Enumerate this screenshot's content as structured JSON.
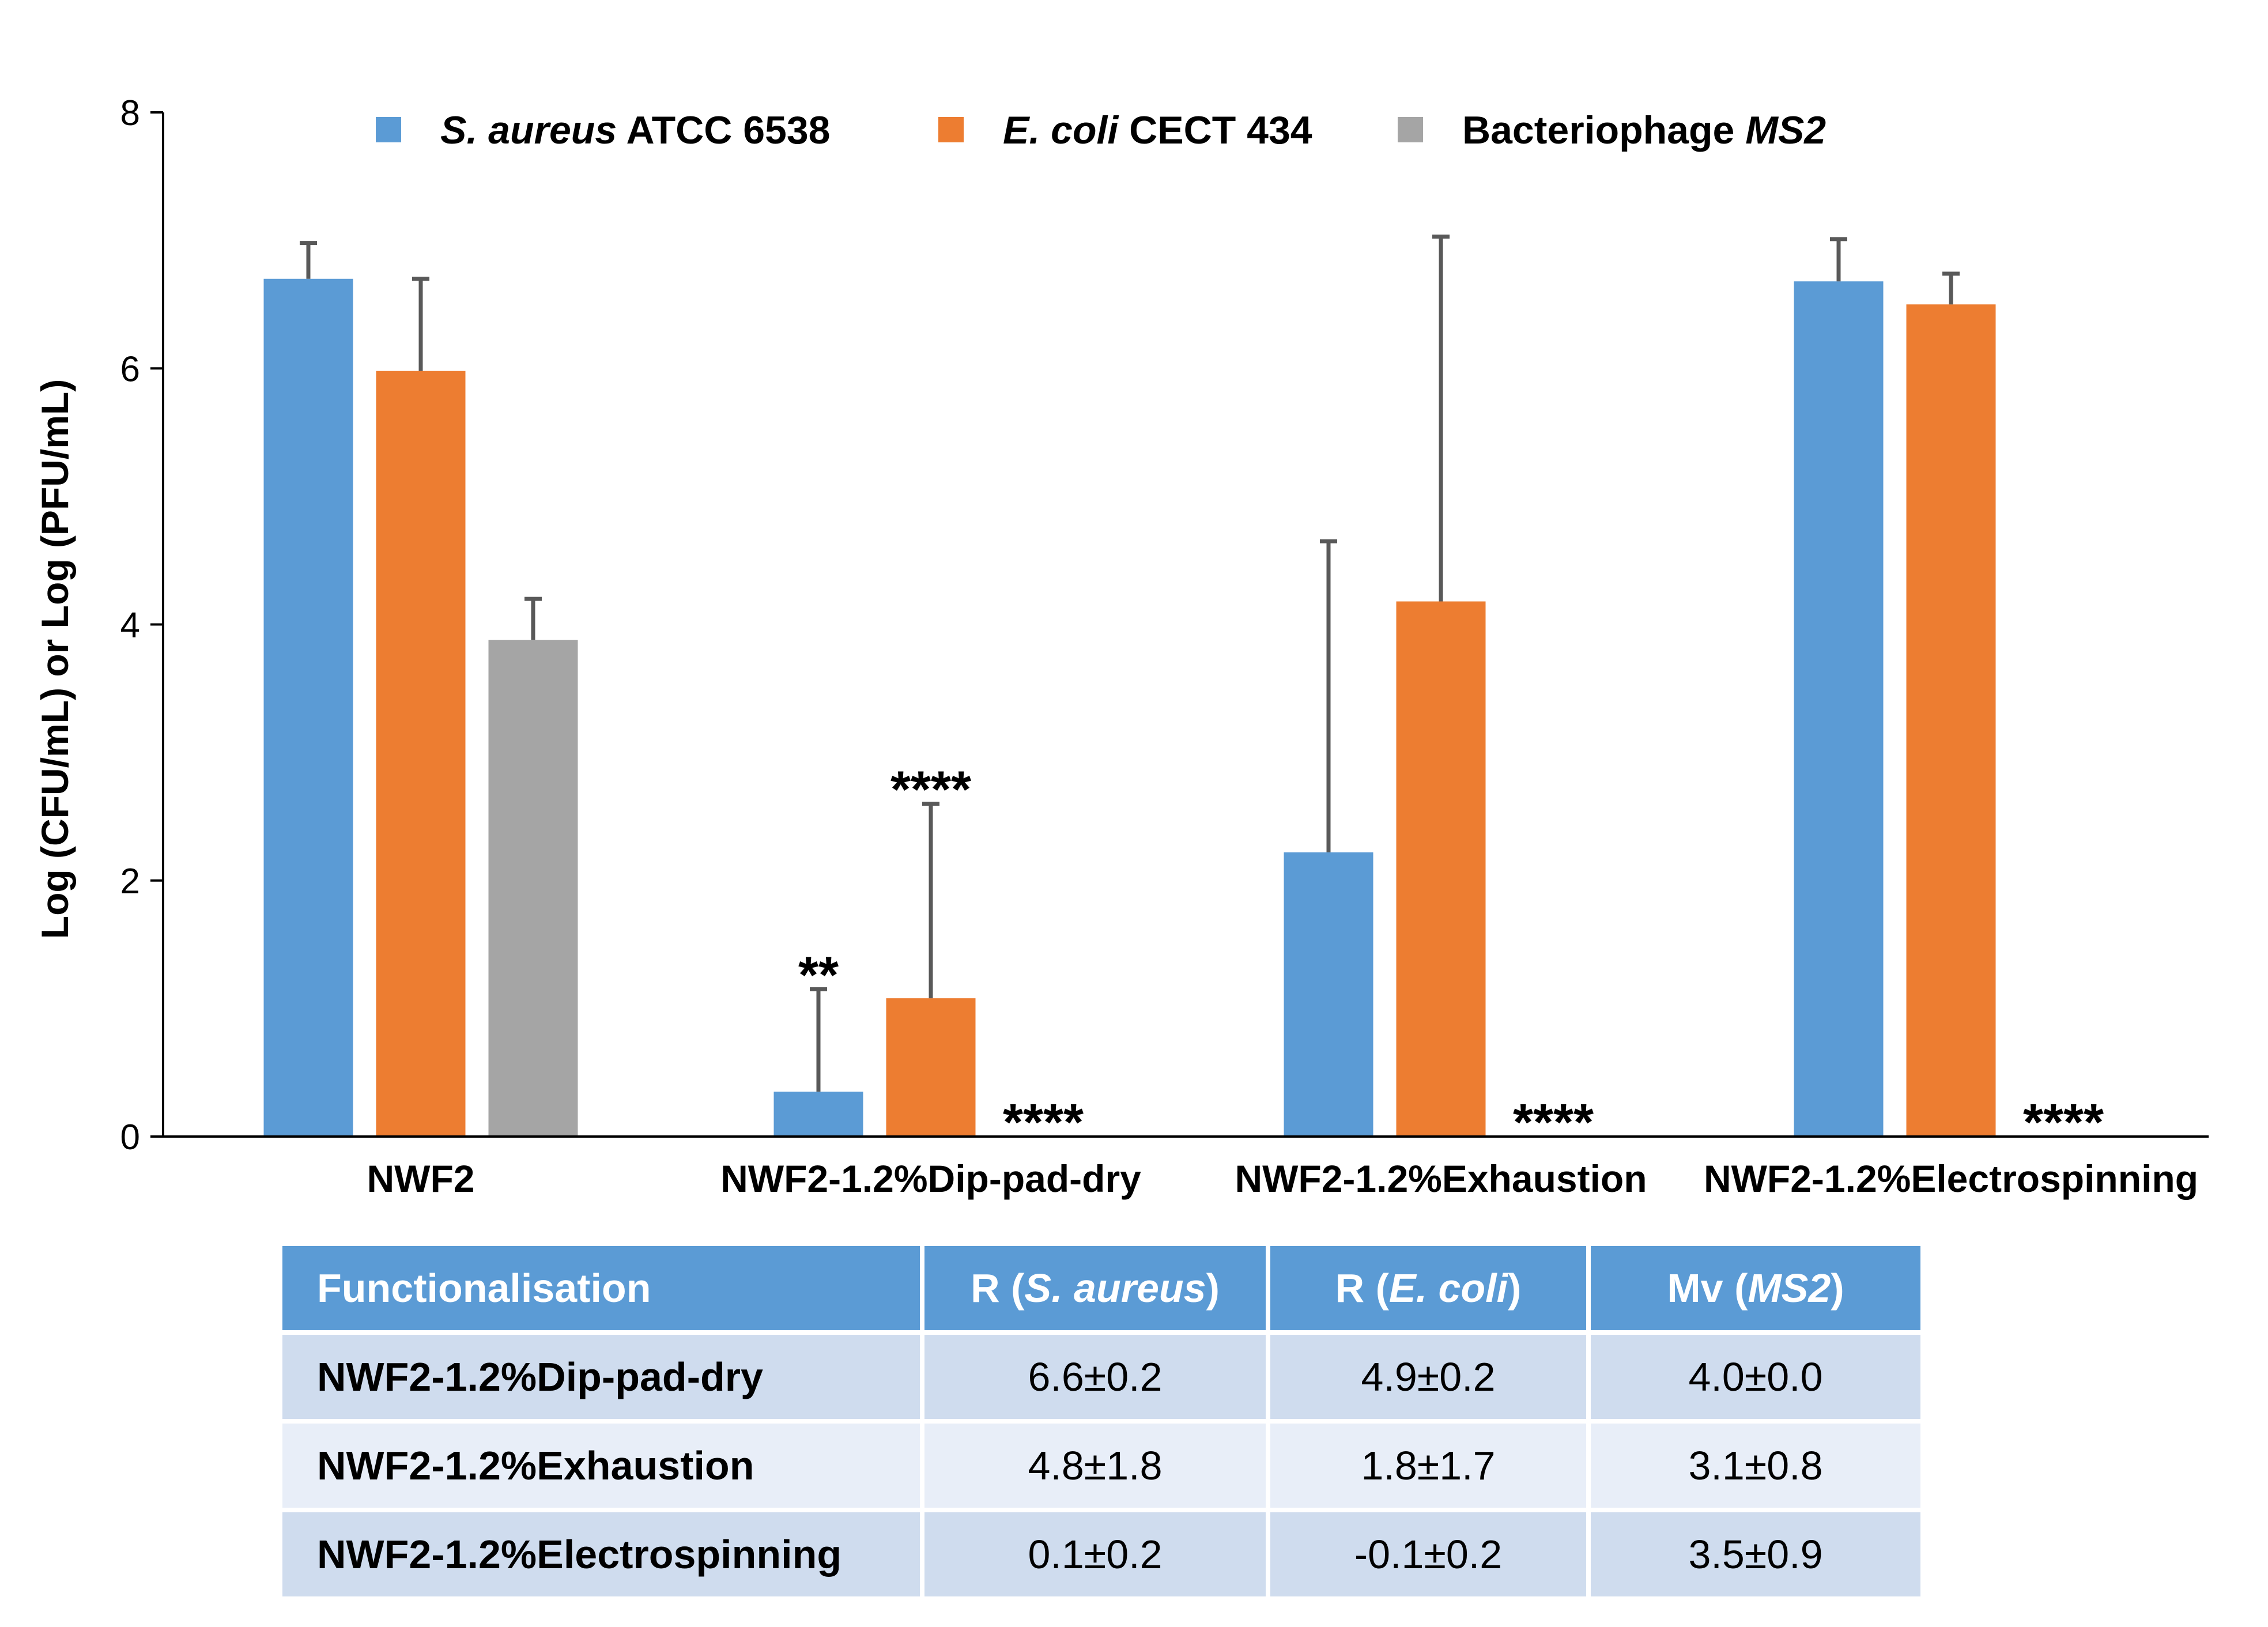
{
  "chart_data": {
    "type": "bar",
    "ylabel": "Log (CFU/mL) or Log (PFU/mL)",
    "ylim": [
      0,
      8
    ],
    "yticks": [
      0,
      2,
      4,
      6,
      8
    ],
    "legend_position": "top",
    "categories": [
      "NWF2",
      "NWF2-1.2%Dip-pad-dry",
      "NWF2-1.2%Exhaustion",
      "NWF2-1.2%Electrospinning"
    ],
    "series": [
      {
        "name_parts": [
          {
            "text": "S. aureus",
            "italic": true
          },
          {
            "text": " ATCC 6538",
            "italic": false
          }
        ],
        "color": "#5b9bd5",
        "values": [
          6.7,
          0.35,
          2.22,
          6.68
        ],
        "errors": [
          0.28,
          0.8,
          2.43,
          0.33
        ],
        "annotations": [
          "",
          "**",
          "",
          ""
        ]
      },
      {
        "name_parts": [
          {
            "text": "E. coli",
            "italic": true
          },
          {
            "text": " CECT 434",
            "italic": false
          }
        ],
        "color": "#ed7d31",
        "values": [
          5.98,
          1.08,
          4.18,
          6.5
        ],
        "errors": [
          0.72,
          1.52,
          2.85,
          0.24
        ],
        "annotations": [
          "",
          "****",
          "",
          ""
        ]
      },
      {
        "name_parts": [
          {
            "text": "Bacteriophage ",
            "italic": false
          },
          {
            "text": "MS2",
            "italic": true
          }
        ],
        "color": "#a5a5a5",
        "values": [
          3.88,
          0,
          0,
          0
        ],
        "errors": [
          0.32,
          0,
          0,
          0
        ],
        "annotations": [
          "",
          "****",
          "****",
          "****"
        ]
      }
    ]
  },
  "table": {
    "headers": [
      [
        {
          "text": "Functionalisation",
          "italic": false
        }
      ],
      [
        {
          "text": "R (",
          "italic": false
        },
        {
          "text": "S. aureus",
          "italic": true
        },
        {
          "text": ")",
          "italic": false
        }
      ],
      [
        {
          "text": "R (",
          "italic": false
        },
        {
          "text": "E. coli",
          "italic": true
        },
        {
          "text": ")",
          "italic": false
        }
      ],
      [
        {
          "text": "Mv (",
          "italic": false
        },
        {
          "text": "MS2",
          "italic": true
        },
        {
          "text": ")",
          "italic": false
        }
      ]
    ],
    "rows": [
      [
        "NWF2-1.2%Dip-pad-dry",
        "6.6±0.2",
        "4.9±0.2",
        "4.0±0.0"
      ],
      [
        "NWF2-1.2%Exhaustion",
        "4.8±1.8",
        "1.8±1.7",
        "3.1±0.8"
      ],
      [
        "NWF2-1.2%Electrospinning",
        "0.1±0.2",
        "-0.1±0.2",
        "3.5±0.9"
      ]
    ]
  }
}
